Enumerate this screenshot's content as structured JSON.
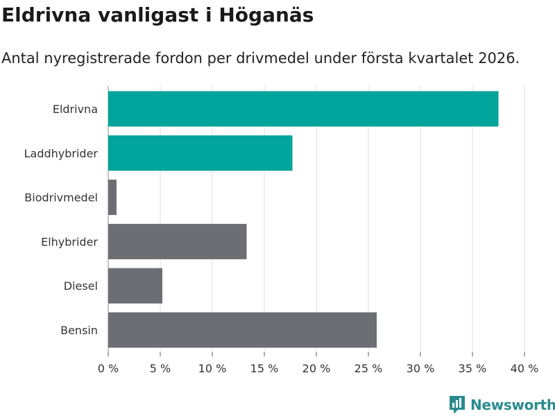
{
  "title": "Eldrivna vanligast i Höganäs",
  "subtitle": "Antal nyregistrerade fordon per drivmedel under första kvartalet 2026.",
  "brand": {
    "name": "Newsworthy",
    "logo_icon": "bar-chart-speech-bubble-icon"
  },
  "colors": {
    "highlight": "#00a49a",
    "default": "#6d6e73",
    "grid": "#dddddd",
    "brand": "#2a8b8e"
  },
  "chart_data": {
    "type": "bar",
    "orientation": "horizontal",
    "categories": [
      "Eldrivna",
      "Laddhybrider",
      "Biodrivmedel",
      "Elhybrider",
      "Diesel",
      "Bensin"
    ],
    "values": [
      37.5,
      17.7,
      0.8,
      13.3,
      5.2,
      25.8
    ],
    "highlighted": [
      true,
      true,
      false,
      false,
      false,
      false
    ],
    "xlim": [
      0,
      40
    ],
    "xticks": [
      0,
      5,
      10,
      15,
      20,
      25,
      30,
      35,
      40
    ],
    "xtick_labels": [
      "0 %",
      "5 %",
      "10 %",
      "15 %",
      "20 %",
      "25 %",
      "30 %",
      "35 %",
      "40 %"
    ],
    "title": "Eldrivna vanligast i Höganäs",
    "xlabel": "",
    "ylabel": "",
    "grid": "vertical"
  }
}
